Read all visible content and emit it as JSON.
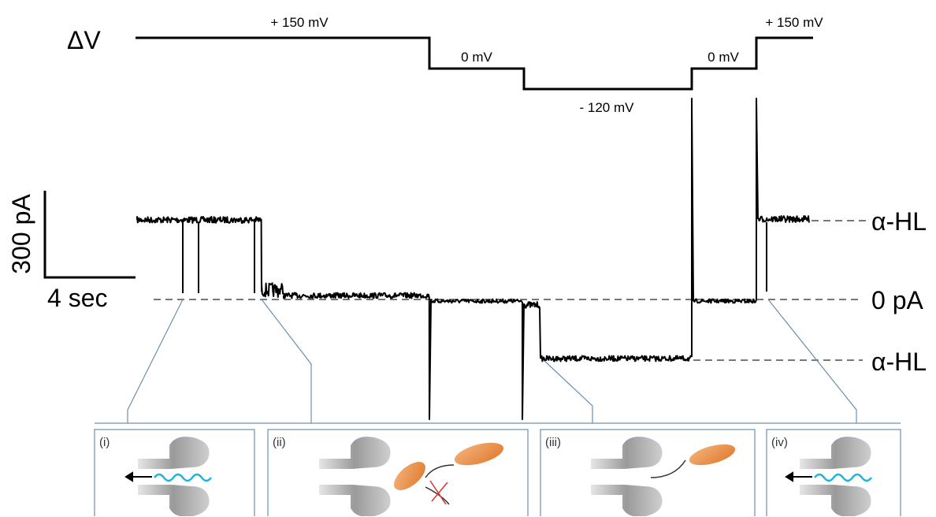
{
  "voltage_protocol": {
    "label": "ΔV",
    "steps": [
      "+ 150 mV",
      "0 mV",
      "- 120 mV",
      "0 mV",
      "+ 150 mV"
    ]
  },
  "scale_bar": {
    "current": "300 pA",
    "time": "4 sec"
  },
  "levels": [
    "α-HL",
    "0 pA",
    "α-HL"
  ],
  "panels": [
    "(i)",
    "(ii)",
    "(iii)",
    "(iv)"
  ]
}
